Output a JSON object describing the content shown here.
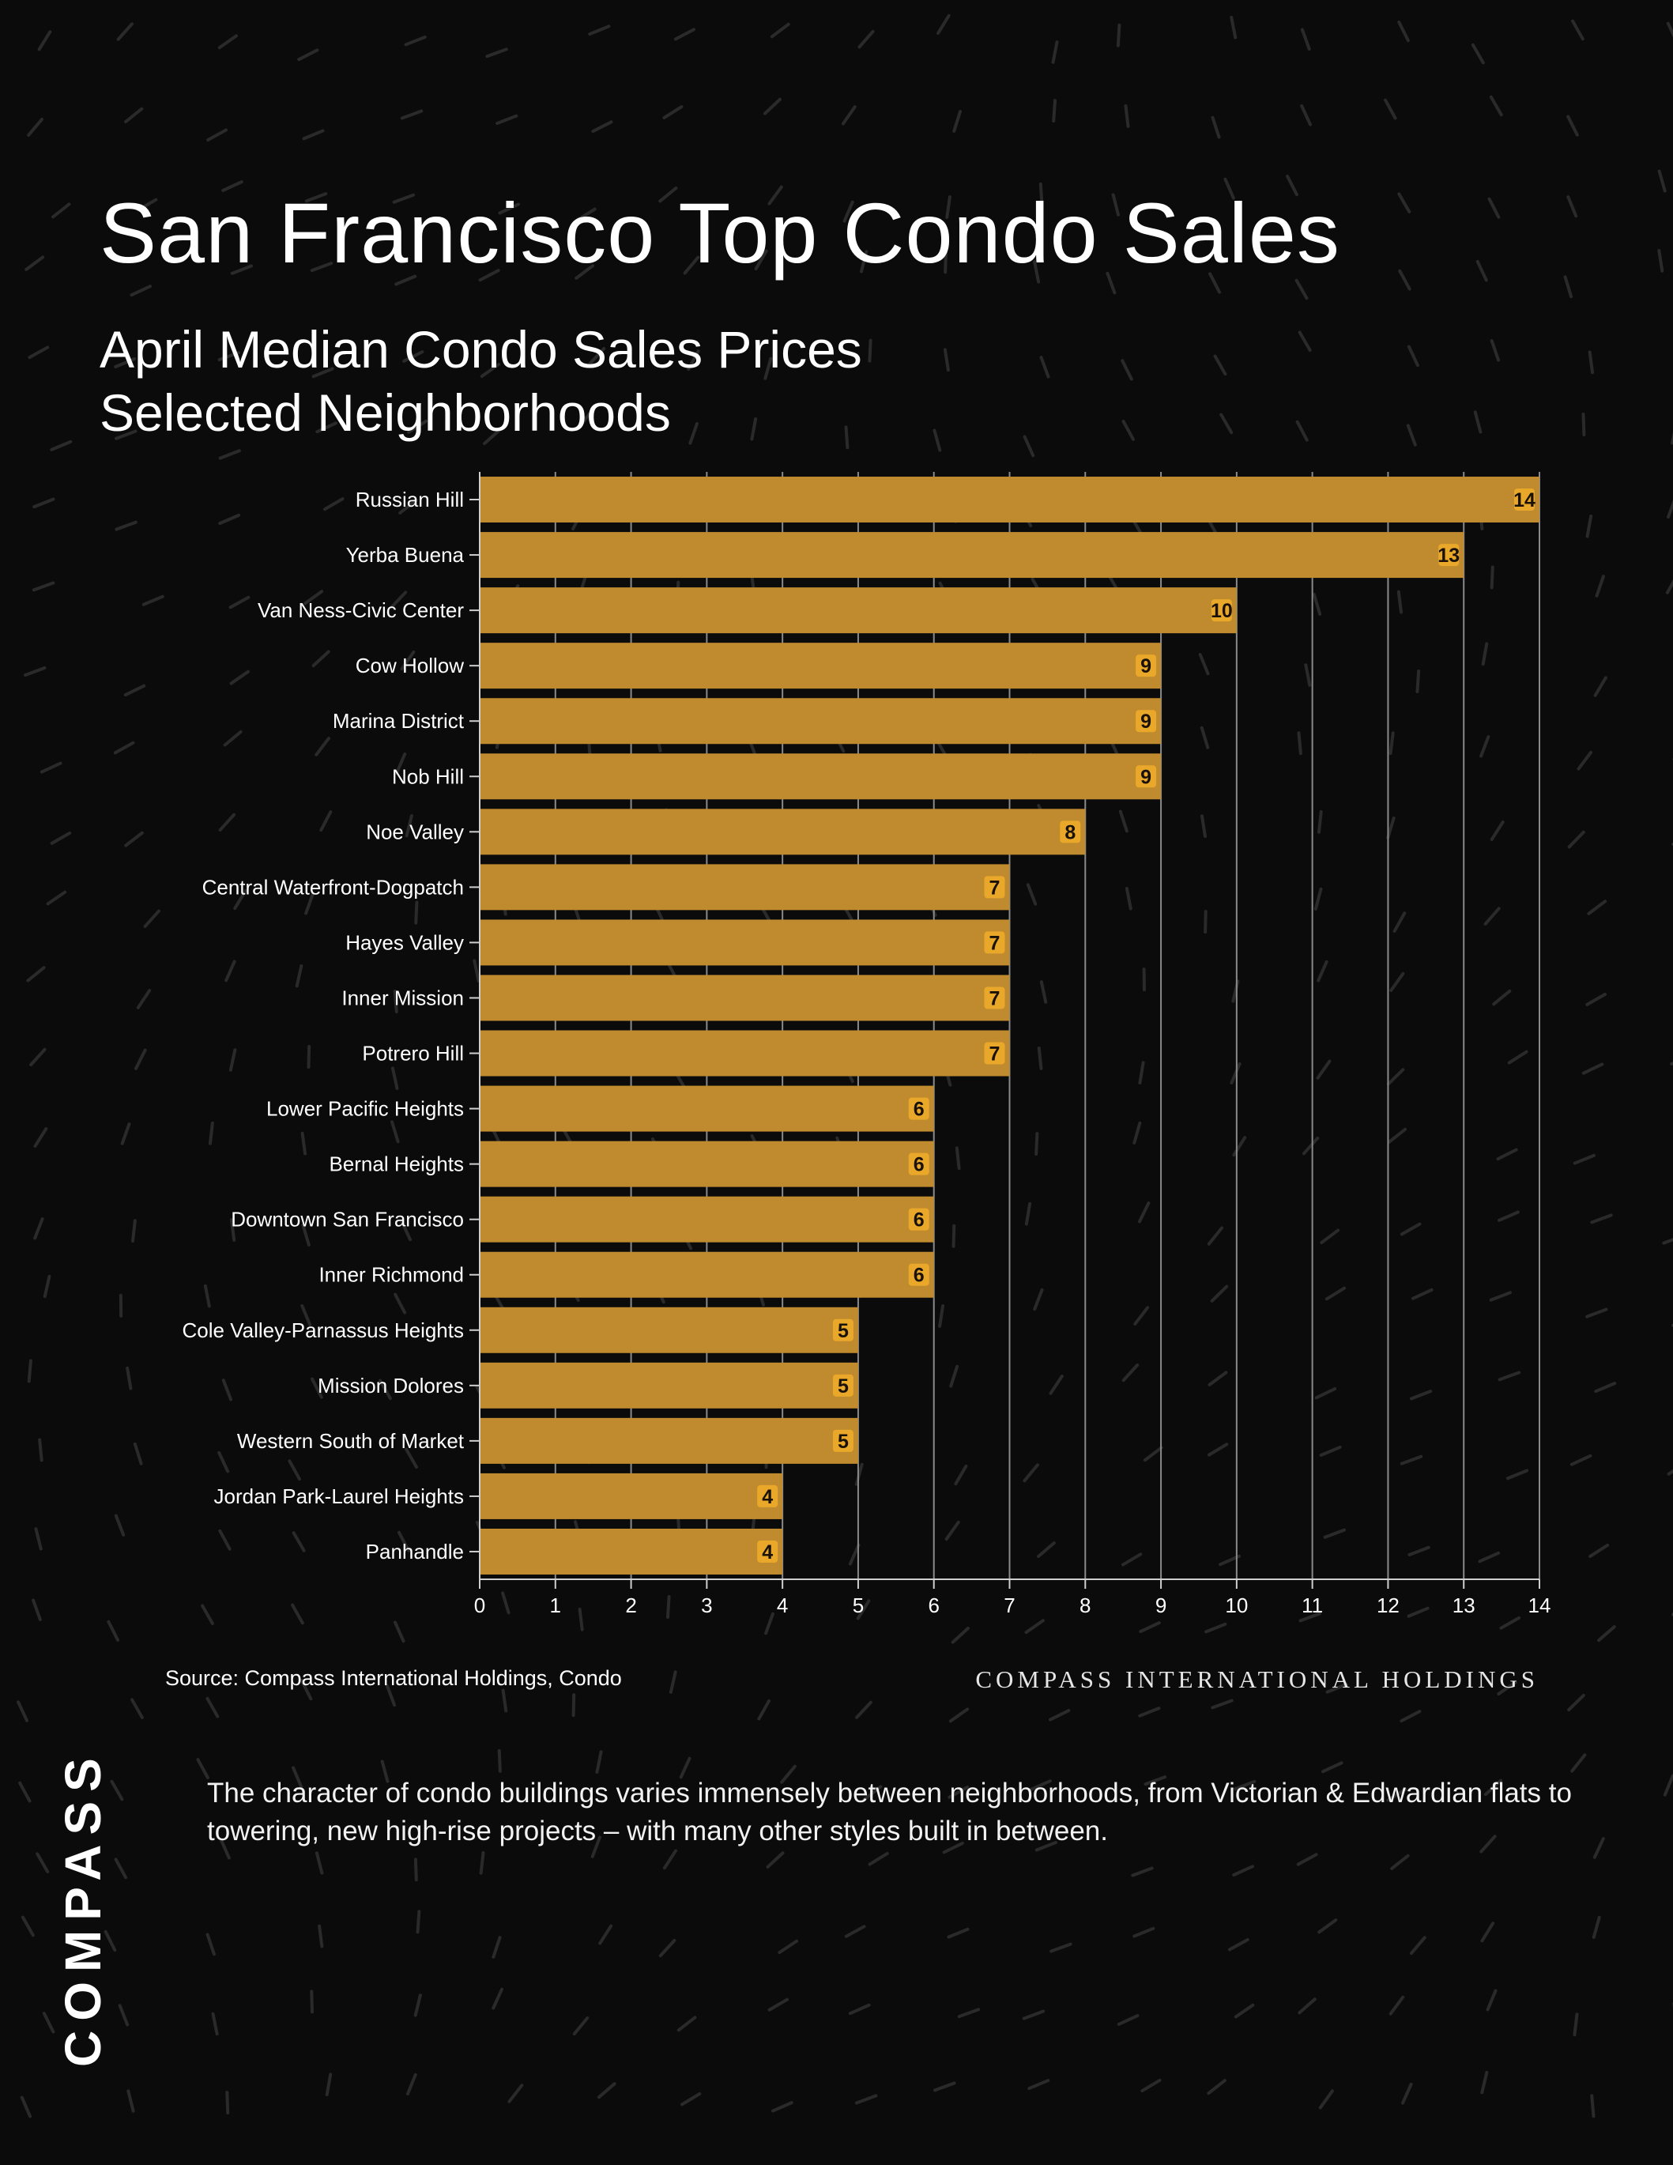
{
  "title": "San Francisco Top Condo Sales",
  "subtitle_line1": "April Median Condo Sales Prices",
  "subtitle_line2": "Selected Neighborhoods",
  "source": "Source: Compass International Holdings, Condo",
  "brandline": "COMPASS INTERNATIONAL HOLDINGS",
  "caption": "The character of condo buildings varies immensely between neighborhoods, from Victorian & Edwardian flats to towering, new high-rise projects – with many other styles built in between.",
  "logo": "COMPASS",
  "colors": {
    "background": "#0b0b0b",
    "bar": "#c08a2e",
    "label_badge": "#e9a82a",
    "text": "#ffffff"
  },
  "chart_data": {
    "type": "bar",
    "orientation": "horizontal",
    "categories": [
      "Russian Hill",
      "Yerba Buena",
      "Van Ness-Civic Center",
      "Cow Hollow",
      "Marina District",
      "Nob Hill",
      "Noe Valley",
      "Central Waterfront-Dogpatch",
      "Hayes Valley",
      "Inner Mission",
      "Potrero Hill",
      "Lower Pacific Heights",
      "Bernal Heights",
      "Downtown San Francisco",
      "Inner Richmond",
      "Cole Valley-Parnassus Heights",
      "Mission Dolores",
      "Western South of Market",
      "Jordan Park-Laurel Heights",
      "Panhandle"
    ],
    "values": [
      14,
      13,
      10,
      9,
      9,
      9,
      8,
      7,
      7,
      7,
      7,
      6,
      6,
      6,
      6,
      5,
      5,
      5,
      4,
      4
    ],
    "xlim": [
      0,
      14
    ],
    "xticks": [
      "0",
      "1",
      "2",
      "3",
      "4",
      "5",
      "6",
      "7",
      "8",
      "9",
      "10",
      "11",
      "12",
      "13",
      "14"
    ],
    "grid": "vertical",
    "data_labels": true
  }
}
